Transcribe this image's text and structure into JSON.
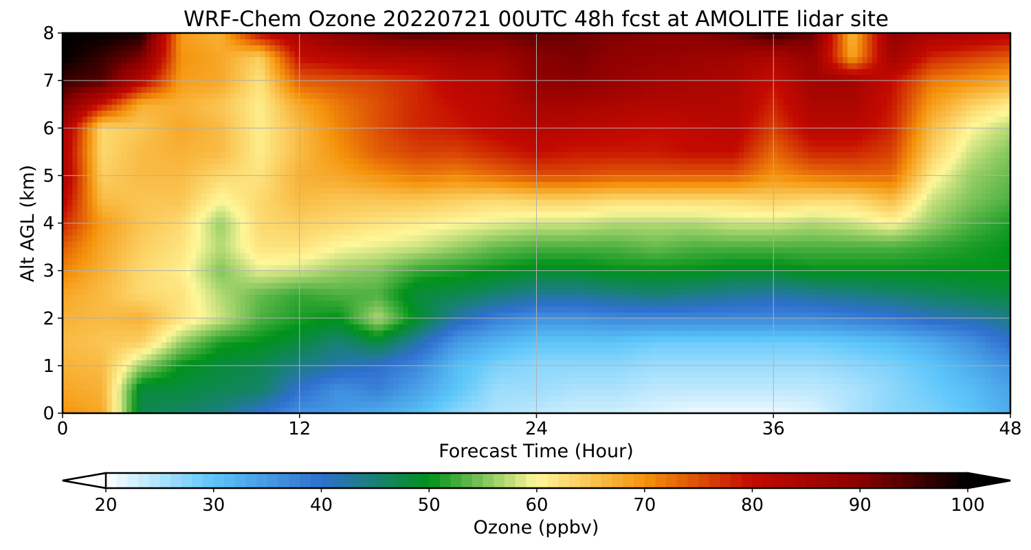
{
  "chart_data": {
    "type": "heatmap",
    "title": "WRF-Chem Ozone  20220721 00UTC 48h fcst at AMOLITE lidar site",
    "xlabel": "Forecast Time (Hour)",
    "ylabel": "Alt AGL (km)",
    "xlim": [
      0,
      48
    ],
    "ylim": [
      0,
      8
    ],
    "xticks": [
      0,
      12,
      24,
      36,
      48
    ],
    "yticks": [
      0,
      1,
      2,
      3,
      4,
      5,
      6,
      7,
      8
    ],
    "grid": true,
    "colorbar": {
      "label": "Ozone  (ppbv)",
      "orientation": "horizontal",
      "placement": "bottom",
      "range": [
        20,
        100
      ],
      "extend": "both",
      "ticks": [
        20,
        30,
        40,
        50,
        60,
        70,
        80,
        90,
        100
      ],
      "stops": [
        {
          "value": 20,
          "color": "#ffffff"
        },
        {
          "value": 30,
          "color": "#5cc6fa"
        },
        {
          "value": 40,
          "color": "#2f6fcf"
        },
        {
          "value": 50,
          "color": "#00921a"
        },
        {
          "value": 60,
          "color": "#fff79a"
        },
        {
          "value": 70,
          "color": "#f5930b"
        },
        {
          "value": 80,
          "color": "#c40a00"
        },
        {
          "value": 90,
          "color": "#8a0000"
        },
        {
          "value": 100,
          "color": "#000000"
        }
      ]
    },
    "contour_profile": {
      "hours": [
        0,
        2,
        4,
        6,
        8,
        10,
        12,
        14,
        16,
        18,
        20,
        22,
        24,
        26,
        28,
        30,
        32,
        34,
        36,
        38,
        40,
        42,
        44,
        46,
        48
      ],
      "alt_km": [
        0,
        0.5,
        1,
        1.5,
        2,
        2.5,
        3,
        3.5,
        4,
        4.5,
        5,
        5.5,
        6,
        6.5,
        7,
        7.5,
        8
      ],
      "ozone_ppbv": [
        [
          70,
          68,
          47,
          46,
          44,
          40,
          36,
          35,
          33,
          31,
          27,
          25,
          24,
          23,
          23,
          22,
          21,
          21,
          21,
          22,
          25,
          27,
          28,
          30,
          33
        ],
        [
          68,
          67,
          48,
          48,
          47,
          46,
          40,
          36,
          38,
          34,
          30,
          26,
          26,
          25,
          25,
          24,
          24,
          24,
          24,
          24,
          25,
          27,
          29,
          31,
          34
        ],
        [
          67,
          66,
          56,
          50,
          48,
          47,
          44,
          42,
          40,
          37,
          31,
          28,
          27,
          27,
          27,
          26,
          26,
          26,
          26,
          26,
          27,
          28,
          30,
          33,
          36
        ],
        [
          66,
          65,
          64,
          56,
          51,
          50,
          48,
          45,
          48,
          42,
          35,
          32,
          30,
          30,
          30,
          29,
          29,
          29,
          29,
          29,
          30,
          31,
          33,
          36,
          40
        ],
        [
          67,
          66,
          67,
          62,
          58,
          53,
          51,
          50,
          57,
          49,
          42,
          38,
          36,
          36,
          37,
          37,
          37,
          37,
          37,
          37,
          38,
          39,
          41,
          42,
          44
        ],
        [
          68,
          66,
          63,
          62,
          57,
          54,
          52,
          53,
          53,
          48,
          47,
          45,
          43,
          43,
          44,
          45,
          44,
          43,
          42,
          43,
          44,
          45,
          46,
          47,
          48
        ],
        [
          71,
          67,
          63,
          61,
          55,
          59,
          58,
          56,
          55,
          52,
          51,
          50,
          49,
          49,
          50,
          50,
          50,
          49,
          49,
          50,
          50,
          50,
          50,
          50,
          50
        ],
        [
          74,
          68,
          64,
          62,
          57,
          62,
          62,
          60,
          59,
          58,
          56,
          54,
          53,
          53,
          53,
          54,
          53,
          53,
          53,
          53,
          53,
          53,
          52,
          51,
          50
        ],
        [
          78,
          69,
          65,
          63,
          56,
          63,
          64,
          63,
          62,
          61,
          60,
          59,
          58,
          58,
          57,
          57,
          57,
          58,
          58,
          57,
          58,
          60,
          56,
          53,
          51
        ],
        [
          82,
          66,
          65,
          65,
          60,
          63,
          66,
          65,
          65,
          65,
          64,
          63,
          64,
          64,
          63,
          63,
          63,
          63,
          64,
          63,
          63,
          66,
          58,
          55,
          53
        ],
        [
          85,
          64,
          66,
          66,
          63,
          62,
          67,
          68,
          70,
          72,
          71,
          73,
          75,
          75,
          74,
          74,
          74,
          74,
          70,
          72,
          73,
          73,
          61,
          56,
          54
        ],
        [
          84,
          63,
          66,
          67,
          66,
          61,
          66,
          70,
          74,
          76,
          76,
          78,
          80,
          79,
          79,
          79,
          80,
          80,
          73,
          78,
          78,
          76,
          64,
          58,
          55
        ],
        [
          86,
          63,
          65,
          68,
          66,
          61,
          66,
          71,
          75,
          78,
          79,
          81,
          83,
          82,
          81,
          80,
          81,
          82,
          76,
          82,
          82,
          78,
          66,
          60,
          57
        ],
        [
          91,
          79,
          67,
          67,
          65,
          61,
          68,
          72,
          75,
          78,
          80,
          82,
          85,
          85,
          84,
          83,
          83,
          83,
          78,
          84,
          84,
          79,
          69,
          64,
          61
        ],
        [
          96,
          94,
          82,
          69,
          68,
          62,
          74,
          75,
          76,
          78,
          82,
          83,
          89,
          90,
          88,
          86,
          85,
          84,
          80,
          86,
          86,
          80,
          72,
          70,
          68
        ],
        [
          100,
          96,
          91,
          70,
          68,
          64,
          80,
          82,
          84,
          84,
          86,
          86,
          90,
          91,
          89,
          88,
          87,
          86,
          84,
          88,
          68,
          86,
          78,
          76,
          74
        ],
        [
          100,
          100,
          98,
          69,
          67,
          80,
          85,
          90,
          92,
          94,
          92,
          92,
          93,
          92,
          91,
          90,
          90,
          92,
          96,
          92,
          66,
          88,
          85,
          84,
          82
        ]
      ]
    }
  }
}
